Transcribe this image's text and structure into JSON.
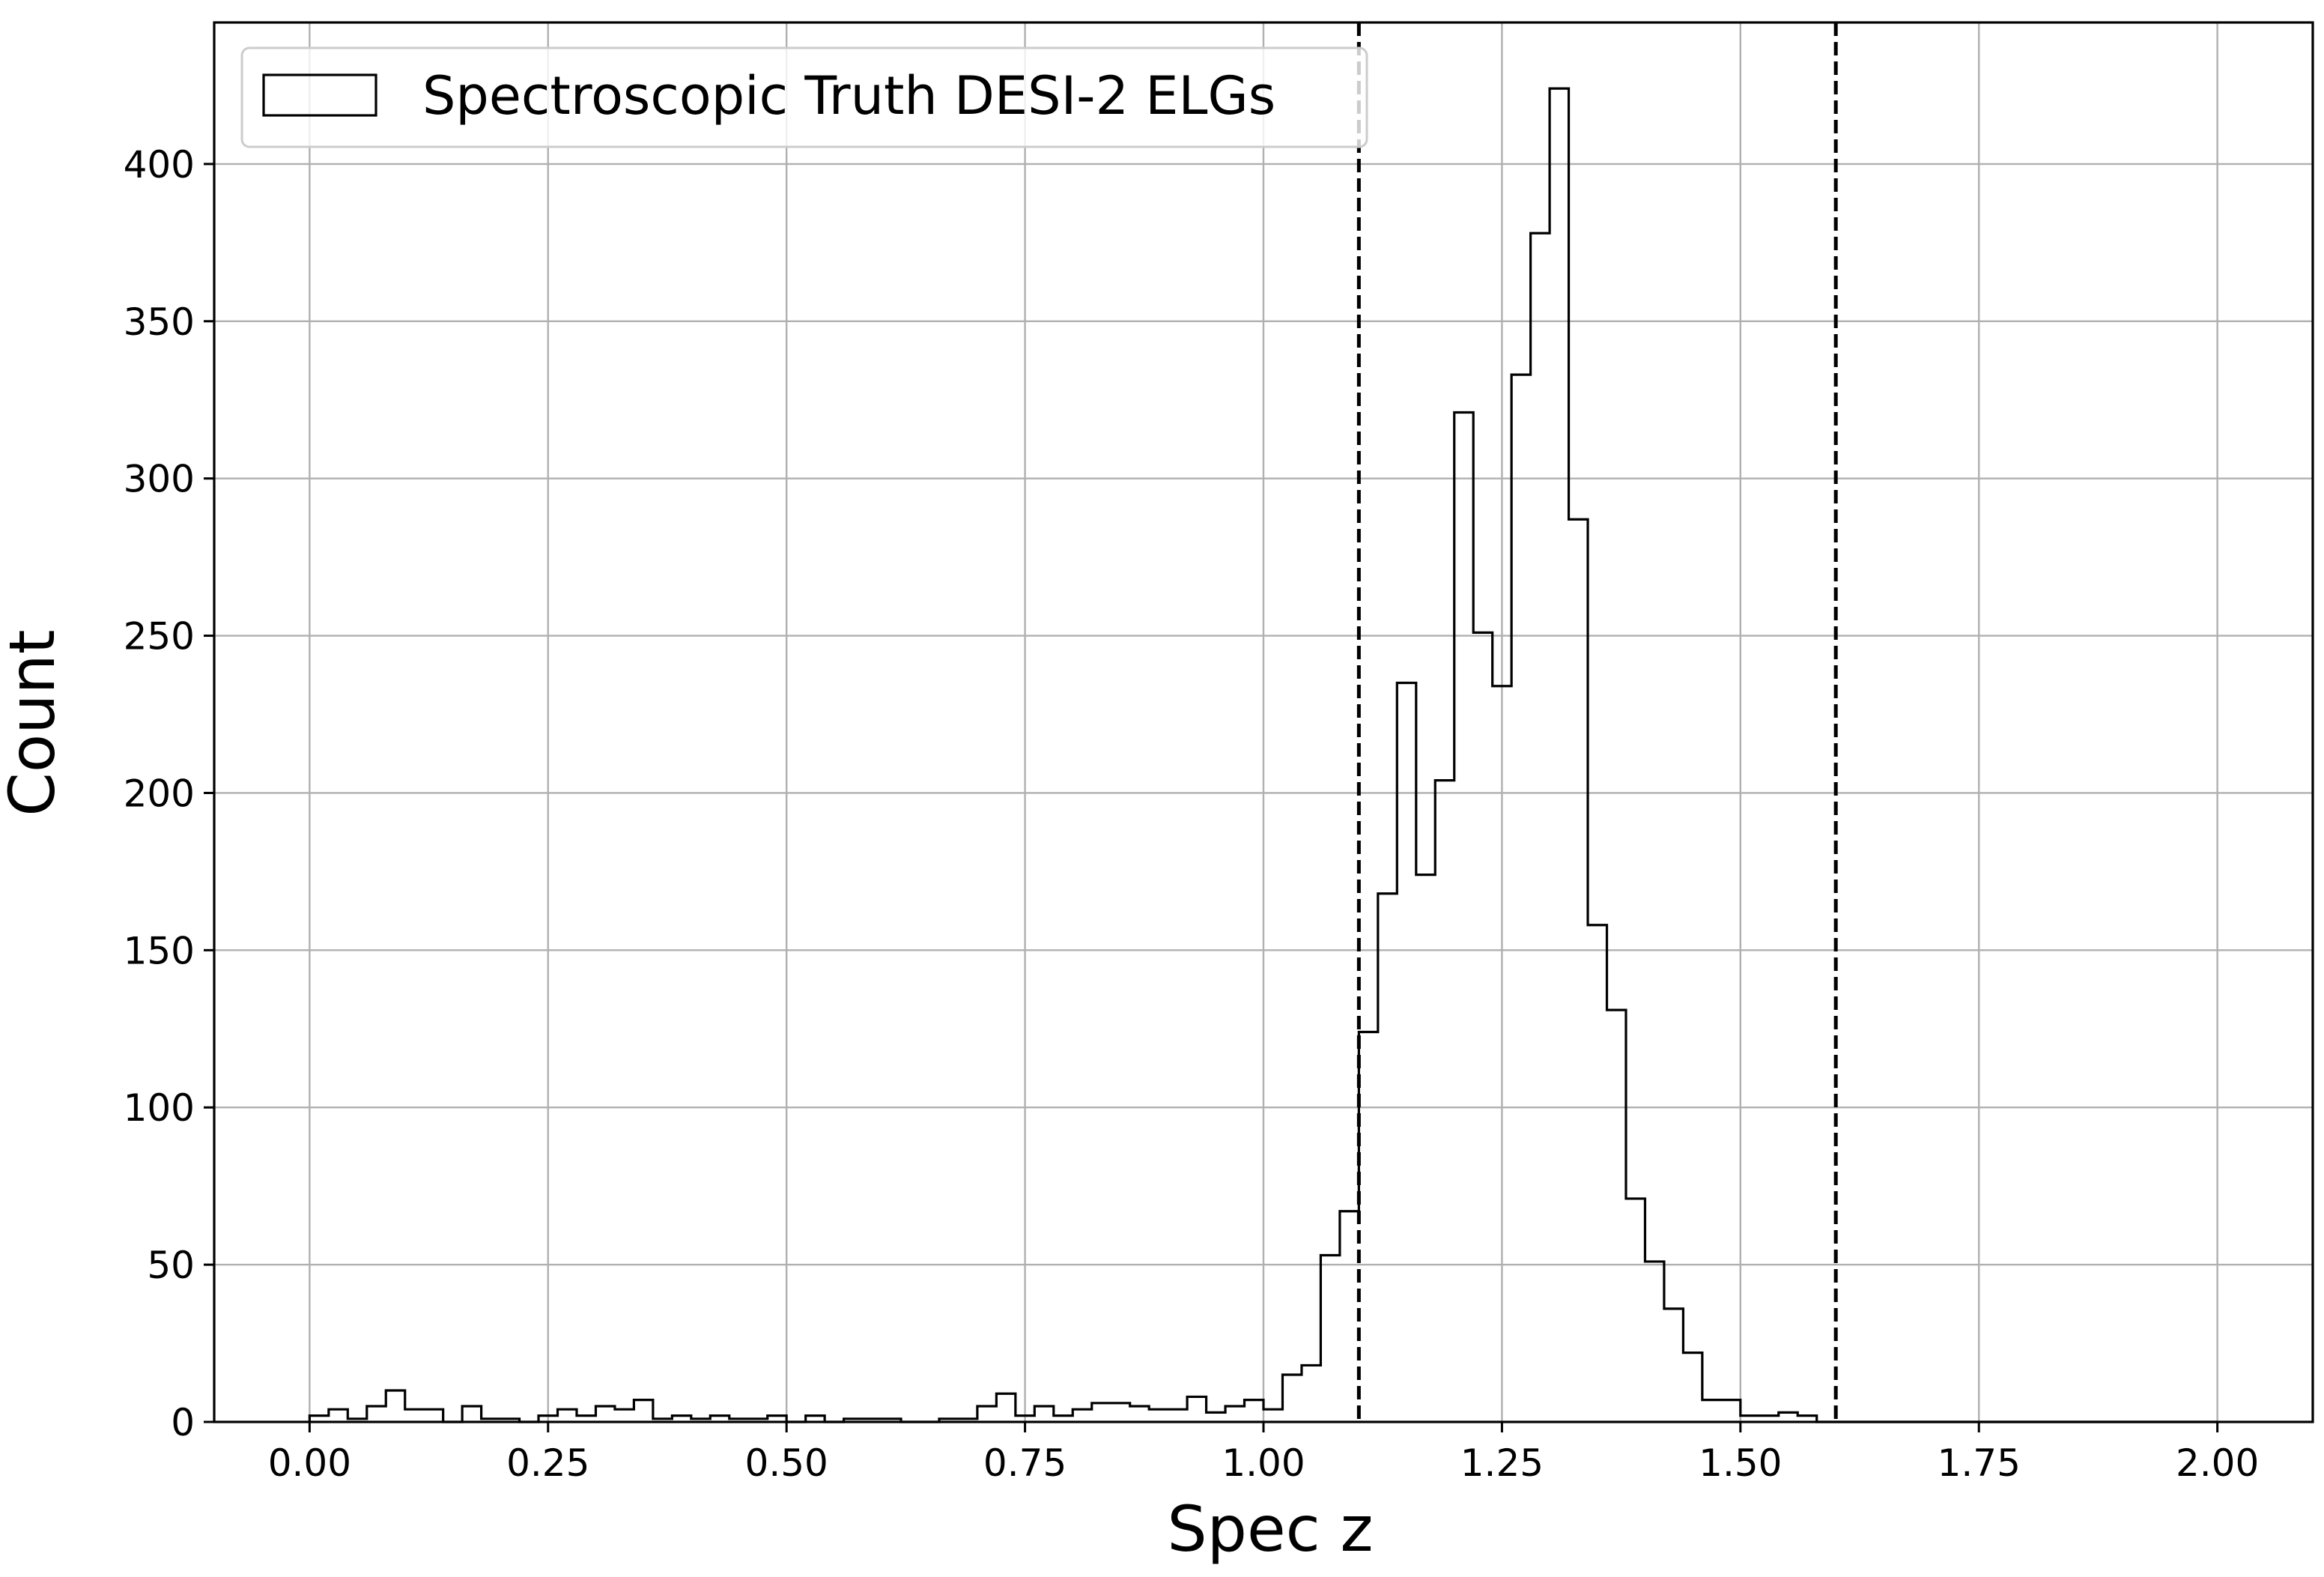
{
  "chart_data": {
    "type": "histogram",
    "xlabel": "Spec z",
    "ylabel": "Count",
    "xlim": [
      -0.1,
      2.1
    ],
    "ylim": [
      0,
      445
    ],
    "x_ticks": [
      0.0,
      0.25,
      0.5,
      0.75,
      1.0,
      1.25,
      1.5,
      1.75,
      2.0
    ],
    "x_tick_labels": [
      "0.00",
      "0.25",
      "0.50",
      "0.75",
      "1.00",
      "1.25",
      "1.50",
      "1.75",
      "2.00"
    ],
    "y_ticks": [
      0,
      50,
      100,
      150,
      200,
      250,
      300,
      350,
      400
    ],
    "y_tick_labels": [
      "0",
      "50",
      "100",
      "150",
      "200",
      "250",
      "300",
      "350",
      "400"
    ],
    "grid": true,
    "legend_position": "top-left",
    "series": [
      {
        "name": "Spectroscopic Truth DESI-2 ELGs",
        "style": "step-outline",
        "color": "#000000",
        "bin_start": 0.0,
        "bin_width": 0.02,
        "counts": [
          2,
          4,
          1,
          5,
          10,
          4,
          4,
          0,
          5,
          1,
          1,
          0,
          2,
          4,
          2,
          5,
          4,
          7,
          1,
          2,
          1,
          2,
          1,
          1,
          2,
          0,
          2,
          0,
          1,
          1,
          1,
          0,
          0,
          1,
          1,
          5,
          9,
          2,
          5,
          2,
          4,
          6,
          6,
          5,
          4,
          4,
          8,
          3,
          5,
          7,
          4,
          15,
          18,
          53,
          67,
          124,
          168,
          235,
          174,
          204,
          321,
          251,
          234,
          333,
          378,
          424,
          287,
          158,
          131,
          71,
          51,
          36,
          22,
          7,
          7,
          2,
          2,
          3,
          2,
          0,
          0,
          0,
          0,
          0,
          0,
          0,
          0,
          0,
          0,
          0,
          0,
          0,
          0,
          0,
          0,
          0,
          0,
          0,
          0,
          0
        ]
      }
    ],
    "vertical_lines": [
      {
        "x": 1.1,
        "style": "dashed",
        "color": "#000000"
      },
      {
        "x": 1.6,
        "style": "dashed",
        "color": "#000000"
      }
    ]
  }
}
